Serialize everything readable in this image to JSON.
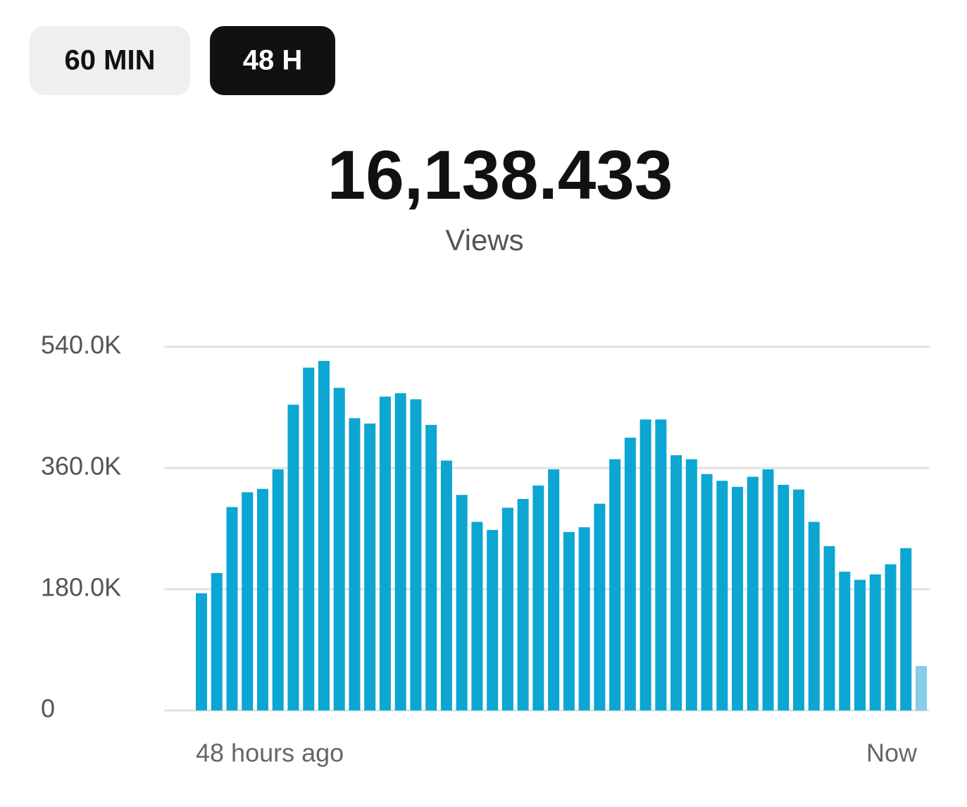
{
  "tabs": [
    {
      "label": "60 MIN",
      "active": false
    },
    {
      "label": "48 H",
      "active": true
    }
  ],
  "total": "16,138.433",
  "total_label": "Views",
  "chart_data": {
    "type": "bar",
    "values": [
      174000,
      204000,
      302000,
      324000,
      329000,
      358000,
      454000,
      509000,
      519000,
      479000,
      434000,
      426000,
      466000,
      471000,
      462000,
      424000,
      371000,
      320000,
      280000,
      268000,
      301000,
      314000,
      334000,
      358000,
      265000,
      272000,
      307000,
      373000,
      405000,
      432000,
      432000,
      379000,
      373000,
      351000,
      341000,
      332000,
      347000,
      358000,
      335000,
      328000,
      280000,
      244000,
      206000,
      194000,
      202000,
      217000,
      241000,
      66000
    ],
    "colors": [
      "#0ca6d2",
      "#0ca6d2",
      "#0ca6d2",
      "#0ca6d2",
      "#0ca6d2",
      "#0ca6d2",
      "#0ca6d2",
      "#0ca6d2",
      "#0ca6d2",
      "#0ca6d2",
      "#0ca6d2",
      "#0ca6d2",
      "#0ca6d2",
      "#0ca6d2",
      "#0ca6d2",
      "#0ca6d2",
      "#0ca6d2",
      "#0ca6d2",
      "#0ca6d2",
      "#0ca6d2",
      "#0ca6d2",
      "#0ca6d2",
      "#0ca6d2",
      "#0ca6d2",
      "#0ca6d2",
      "#0ca6d2",
      "#0ca6d2",
      "#0ca6d2",
      "#0ca6d2",
      "#0ca6d2",
      "#0ca6d2",
      "#0ca6d2",
      "#0ca6d2",
      "#0ca6d2",
      "#0ca6d2",
      "#0ca6d2",
      "#0ca6d2",
      "#0ca6d2",
      "#0ca6d2",
      "#0ca6d2",
      "#0ca6d2",
      "#0ca6d2",
      "#0ca6d2",
      "#0ca6d2",
      "#0ca6d2",
      "#0ca6d2",
      "#0ca6d2",
      "#86cde5"
    ],
    "ylim": [
      0,
      540000
    ],
    "yticks": [
      0,
      {
        "value": 180000,
        "label": "180.0K"
      },
      {
        "value": 360000,
        "label": "360.0K"
      },
      {
        "value": 540000,
        "label": "540.0K"
      }
    ],
    "grid": true,
    "x_start_label": "48 hours ago",
    "x_end_label": "Now"
  }
}
